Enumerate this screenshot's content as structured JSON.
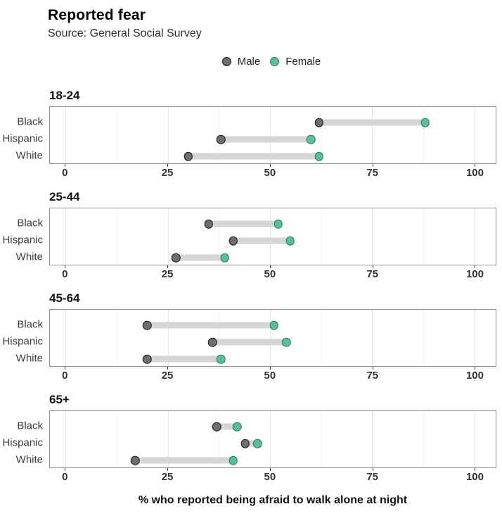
{
  "header": {
    "title": "Reported fear",
    "subtitle": "Source: General Social Survey"
  },
  "legend": {
    "items": [
      {
        "label": "Male",
        "fill": "#6e6e6e",
        "stroke": "#1a1a1a"
      },
      {
        "label": "Female",
        "fill": "#57bf9c",
        "stroke": "#2b7a62"
      }
    ]
  },
  "colors": {
    "male_fill": "#6e6e6e",
    "male_stroke": "#1a1a1a",
    "female_fill": "#57bf9c",
    "female_stroke": "#2b7a62",
    "connector_bar": "#d6d6d6",
    "panel_border": "#8f8f8f",
    "major_grid": "#e6e6e6",
    "minor_grid": "#f2f2f2"
  },
  "chart_data": {
    "type": "dumbbell",
    "title": "Reported fear",
    "subtitle": "Source: General Social Survey",
    "xlabel": "% who reported being afraid to walk alone at night",
    "ylabel": "",
    "xlim": [
      0,
      100
    ],
    "x_ticks": [
      0,
      25,
      50,
      75,
      100
    ],
    "minor_gridlines": [
      12.5,
      37.5,
      62.5,
      87.5
    ],
    "grid": "vertical major and minor gridlines, white panel background",
    "legend_position": "top center",
    "series_names": [
      "Male",
      "Female"
    ],
    "facets": [
      {
        "age_group": "18-24",
        "categories": [
          "Black",
          "Hispanic",
          "White"
        ],
        "rows": [
          {
            "label": "Black",
            "male": 62,
            "female": 88
          },
          {
            "label": "Hispanic",
            "male": 38,
            "female": 60
          },
          {
            "label": "White",
            "male": 30,
            "female": 62
          }
        ]
      },
      {
        "age_group": "25-44",
        "categories": [
          "Black",
          "Hispanic",
          "White"
        ],
        "rows": [
          {
            "label": "Black",
            "male": 35,
            "female": 52
          },
          {
            "label": "Hispanic",
            "male": 41,
            "female": 55
          },
          {
            "label": "White",
            "male": 27,
            "female": 39
          }
        ]
      },
      {
        "age_group": "45-64",
        "categories": [
          "Black",
          "Hispanic",
          "White"
        ],
        "rows": [
          {
            "label": "Black",
            "male": 20,
            "female": 51
          },
          {
            "label": "Hispanic",
            "male": 36,
            "female": 54
          },
          {
            "label": "White",
            "male": 20,
            "female": 38
          }
        ]
      },
      {
        "age_group": "65+",
        "categories": [
          "Black",
          "Hispanic",
          "White"
        ],
        "rows": [
          {
            "label": "Black",
            "male": 37,
            "female": 42
          },
          {
            "label": "Hispanic",
            "male": 44,
            "female": 47
          },
          {
            "label": "White",
            "male": 17,
            "female": 41
          }
        ]
      }
    ]
  }
}
